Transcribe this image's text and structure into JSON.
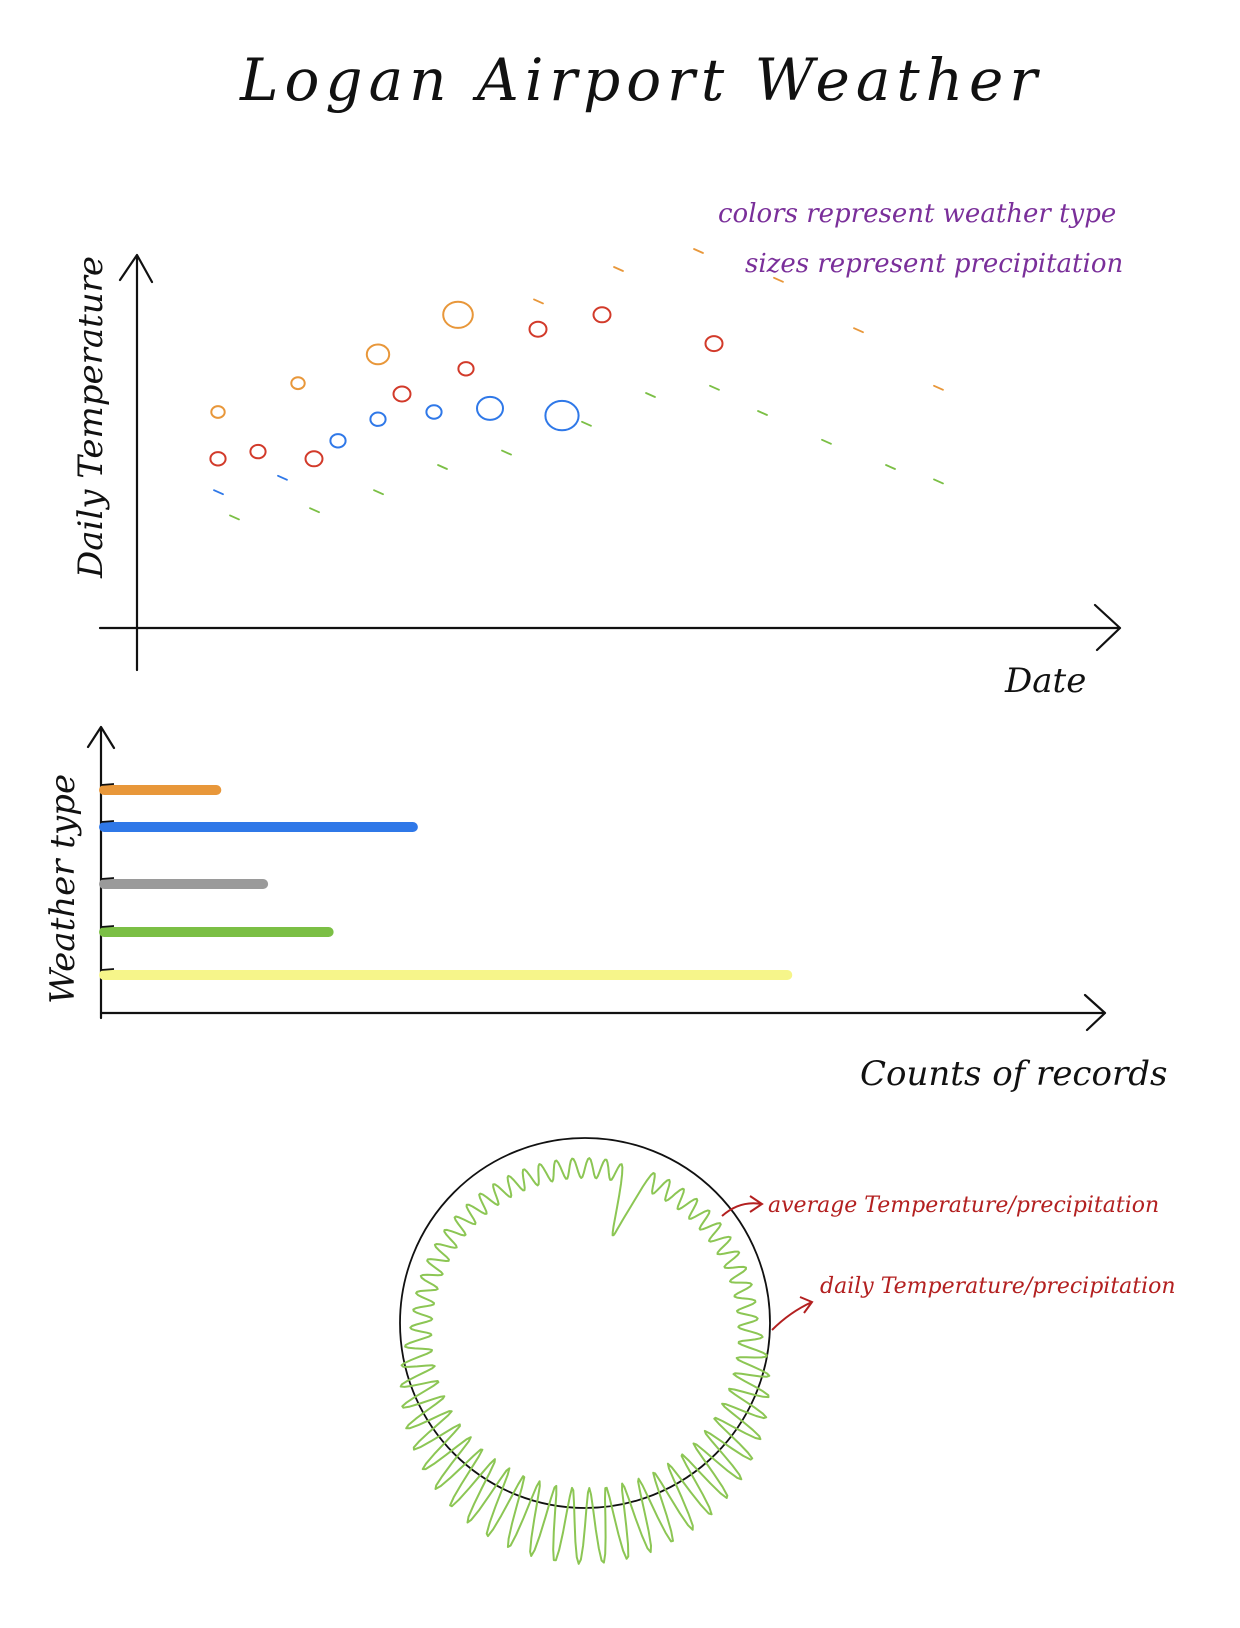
{
  "title": "Logan Airport Weather",
  "colors": {
    "ink": "#111111",
    "legend_note": "#7a2f9a",
    "annotation": "#b32020",
    "weather_orange": "#e8973a",
    "weather_blue": "#2f78e8",
    "weather_gray": "#9a9a9a",
    "weather_green": "#7bbf45",
    "weather_yellow": "#f6f58a",
    "weather_red": "#d23a2a",
    "radial_line": "#8cc654"
  },
  "scatter_panel": {
    "ylabel": "Daily Temperature",
    "xlabel": "Date",
    "note_colors": "colors represent weather type",
    "note_sizes": "sizes represent precipitation"
  },
  "bar_panel": {
    "ylabel": "Weather type",
    "xlabel": "Counts of records"
  },
  "radial_panel": {
    "annotation_average": "average Temperature/precipitation",
    "annotation_daily": "daily Temperature/precipitation"
  },
  "chart_data": [
    {
      "type": "scatter",
      "xlabel": "Date",
      "ylabel": "Daily Temperature",
      "encoding_note": [
        "colors represent weather type",
        "sizes represent precipitation"
      ],
      "series": [
        {
          "color": "orange",
          "points": [
            [
              1,
              0.55,
              0.3
            ],
            [
              2,
              0.63,
              0.3
            ],
            [
              3,
              0.71,
              0.8
            ],
            [
              4,
              0.82,
              1.2
            ],
            [
              5,
              0.86,
              0.2
            ],
            [
              6,
              0.95,
              0.2
            ],
            [
              7,
              1.0,
              0.2
            ],
            [
              8,
              0.92,
              0.2
            ],
            [
              9,
              0.78,
              0.2
            ],
            [
              10,
              0.62,
              0.2
            ]
          ]
        },
        {
          "color": "red",
          "points": [
            [
              1,
              0.42,
              0.4
            ],
            [
              1.5,
              0.44,
              0.4
            ],
            [
              2.2,
              0.42,
              0.5
            ],
            [
              3.3,
              0.6,
              0.5
            ],
            [
              4.1,
              0.67,
              0.4
            ],
            [
              5,
              0.78,
              0.5
            ],
            [
              5.8,
              0.82,
              0.5
            ],
            [
              7.2,
              0.74,
              0.5
            ]
          ]
        },
        {
          "color": "blue",
          "points": [
            [
              1,
              0.33,
              0.1
            ],
            [
              1.8,
              0.37,
              0.1
            ],
            [
              2.5,
              0.47,
              0.4
            ],
            [
              3,
              0.53,
              0.4
            ],
            [
              3.7,
              0.55,
              0.4
            ],
            [
              4.4,
              0.56,
              1.0
            ],
            [
              5.3,
              0.54,
              1.4
            ]
          ]
        },
        {
          "color": "green",
          "points": [
            [
              1.2,
              0.26,
              0.1
            ],
            [
              2.2,
              0.28,
              0.1
            ],
            [
              3,
              0.33,
              0.1
            ],
            [
              3.8,
              0.4,
              0.1
            ],
            [
              4.6,
              0.44,
              0.1
            ],
            [
              5.6,
              0.52,
              0.1
            ],
            [
              6.4,
              0.6,
              0.1
            ],
            [
              7.2,
              0.62,
              0.1
            ],
            [
              7.8,
              0.55,
              0.1
            ],
            [
              8.6,
              0.47,
              0.1
            ],
            [
              9.4,
              0.4,
              0.1
            ],
            [
              10,
              0.36,
              0.1
            ]
          ]
        }
      ]
    },
    {
      "type": "bar",
      "orientation": "horizontal",
      "xlabel": "Counts of records",
      "ylabel": "Weather type",
      "series": [
        {
          "color": "orange",
          "value": 12
        },
        {
          "color": "blue",
          "value": 33
        },
        {
          "color": "gray",
          "value": 17
        },
        {
          "color": "green",
          "value": 24
        },
        {
          "color": "yellow",
          "value": 73
        }
      ]
    },
    {
      "type": "radial",
      "annotations": [
        "average Temperature/precipitation",
        "daily Temperature/precipitation"
      ]
    }
  ]
}
